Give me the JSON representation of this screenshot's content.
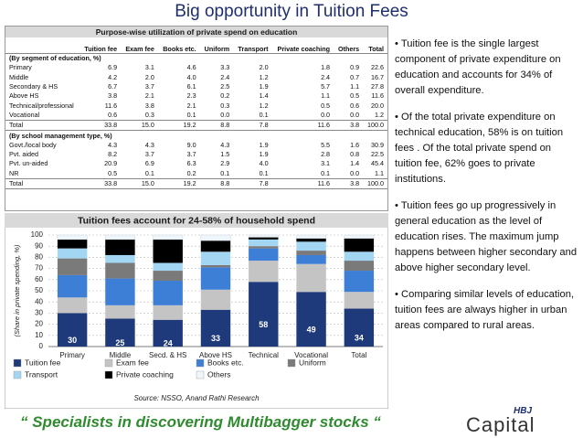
{
  "title": "Big opportunity in Tuition Fees",
  "table": {
    "heading": "Purpose-wise utilization of private spend on education",
    "columns": [
      "Tuition fee",
      "Exam fee",
      "Books etc.",
      "Uniform",
      "Transport",
      "Private coaching",
      "Others",
      "Total"
    ],
    "sections": [
      {
        "heading": "(By segment of education, %)",
        "rows": [
          [
            "Primary",
            "6.9",
            "3.1",
            "4.6",
            "3.3",
            "2.0",
            "1.8",
            "0.9",
            "22.6"
          ],
          [
            "Middle",
            "4.2",
            "2.0",
            "4.0",
            "2.4",
            "1.2",
            "2.4",
            "0.7",
            "16.7"
          ],
          [
            "Secondary & HS",
            "6.7",
            "3.7",
            "6.1",
            "2.5",
            "1.9",
            "5.7",
            "1.1",
            "27.8"
          ],
          [
            "Above HS",
            "3.8",
            "2.1",
            "2.3",
            "0.2",
            "1.4",
            "1.1",
            "0.5",
            "11.6"
          ],
          [
            "Technical/professional",
            "11.6",
            "3.8",
            "2.1",
            "0.3",
            "1.2",
            "0.5",
            "0.6",
            "20.0"
          ],
          [
            "Vocational",
            "0.6",
            "0.3",
            "0.1",
            "0.0",
            "0.1",
            "0.0",
            "0.0",
            "1.2"
          ],
          [
            "Total",
            "33.8",
            "15.0",
            "19.2",
            "8.8",
            "7.8",
            "11.6",
            "3.8",
            "100.0"
          ]
        ]
      },
      {
        "heading": "(By school management type, %)",
        "rows": [
          [
            "Govt./local body",
            "4.3",
            "4.3",
            "9.0",
            "4.3",
            "1.9",
            "5.5",
            "1.6",
            "30.9"
          ],
          [
            "Pvt. aided",
            "8.2",
            "3.7",
            "3.7",
            "1.5",
            "1.9",
            "2.8",
            "0.8",
            "22.5"
          ],
          [
            "Pvt. un-aided",
            "20.9",
            "6.9",
            "6.3",
            "2.9",
            "4.0",
            "3.1",
            "1.4",
            "45.4"
          ],
          [
            "NR",
            "0.5",
            "0.1",
            "0.2",
            "0.1",
            "0.1",
            "0.1",
            "0.0",
            "1.1"
          ],
          [
            "Total",
            "33.8",
            "15.0",
            "19.2",
            "8.8",
            "7.8",
            "11.6",
            "3.8",
            "100.0"
          ]
        ]
      }
    ]
  },
  "chart_data": {
    "type": "stacked_bar",
    "title": "Tuition fees account for 24-58% of household spend",
    "y_label": "(Share in private spending, %)",
    "source": "Source: NSSO, Anand Rathi Research",
    "categories": [
      "Primary",
      "Middle",
      "Secd. & HS",
      "Above HS",
      "Technical",
      "Vocational",
      "Total"
    ],
    "ylim": [
      0,
      100
    ],
    "yticks": [
      0,
      10,
      20,
      30,
      40,
      50,
      60,
      70,
      80,
      90,
      100
    ],
    "grid": true,
    "series": [
      {
        "name": "Tuition fee",
        "color": "#1f3a7a",
        "values": [
          30,
          25,
          24,
          33,
          58,
          49,
          34
        ]
      },
      {
        "name": "Exam fee",
        "color": "#c4c4c4",
        "values": [
          14,
          12,
          13,
          18,
          19,
          25,
          15
        ]
      },
      {
        "name": "Books etc.",
        "color": "#3d7fd6",
        "values": [
          20,
          24,
          22,
          20,
          11,
          8,
          19
        ]
      },
      {
        "name": "Uniform",
        "color": "#7a7a7a",
        "values": [
          15,
          14,
          9,
          2,
          2,
          4,
          9
        ]
      },
      {
        "name": "Transport",
        "color": "#a3d6f2",
        "values": [
          9,
          7,
          7,
          12,
          6,
          8,
          8
        ]
      },
      {
        "name": "Private coaching",
        "color": "#000000",
        "values": [
          8,
          14,
          21,
          10,
          2,
          3,
          12
        ]
      },
      {
        "name": "Others",
        "color": "#eef6fb",
        "values": [
          4,
          4,
          4,
          5,
          2,
          3,
          3
        ]
      }
    ]
  },
  "bullets": [
    "• Tuition fee is the single largest component of private expenditure on education and accounts for 34% of overall expenditure.",
    "• Of the total private expenditure on technical education, 58% is on tuition fees . Of the total private spend on tuition fee, 62% goes to private institutions.",
    "• Tuition fees go up progressively in general education as the level of education rises. The maximum jump happens between higher secondary  and above higher secondary level.",
    "• Comparing similar levels of education, tuition fees are always higher in urban areas compared to rural areas."
  ],
  "footer": "“ Specialists in discovering Multibagger stocks “",
  "logo": {
    "top": "HBJ",
    "bottom": "Capital"
  }
}
